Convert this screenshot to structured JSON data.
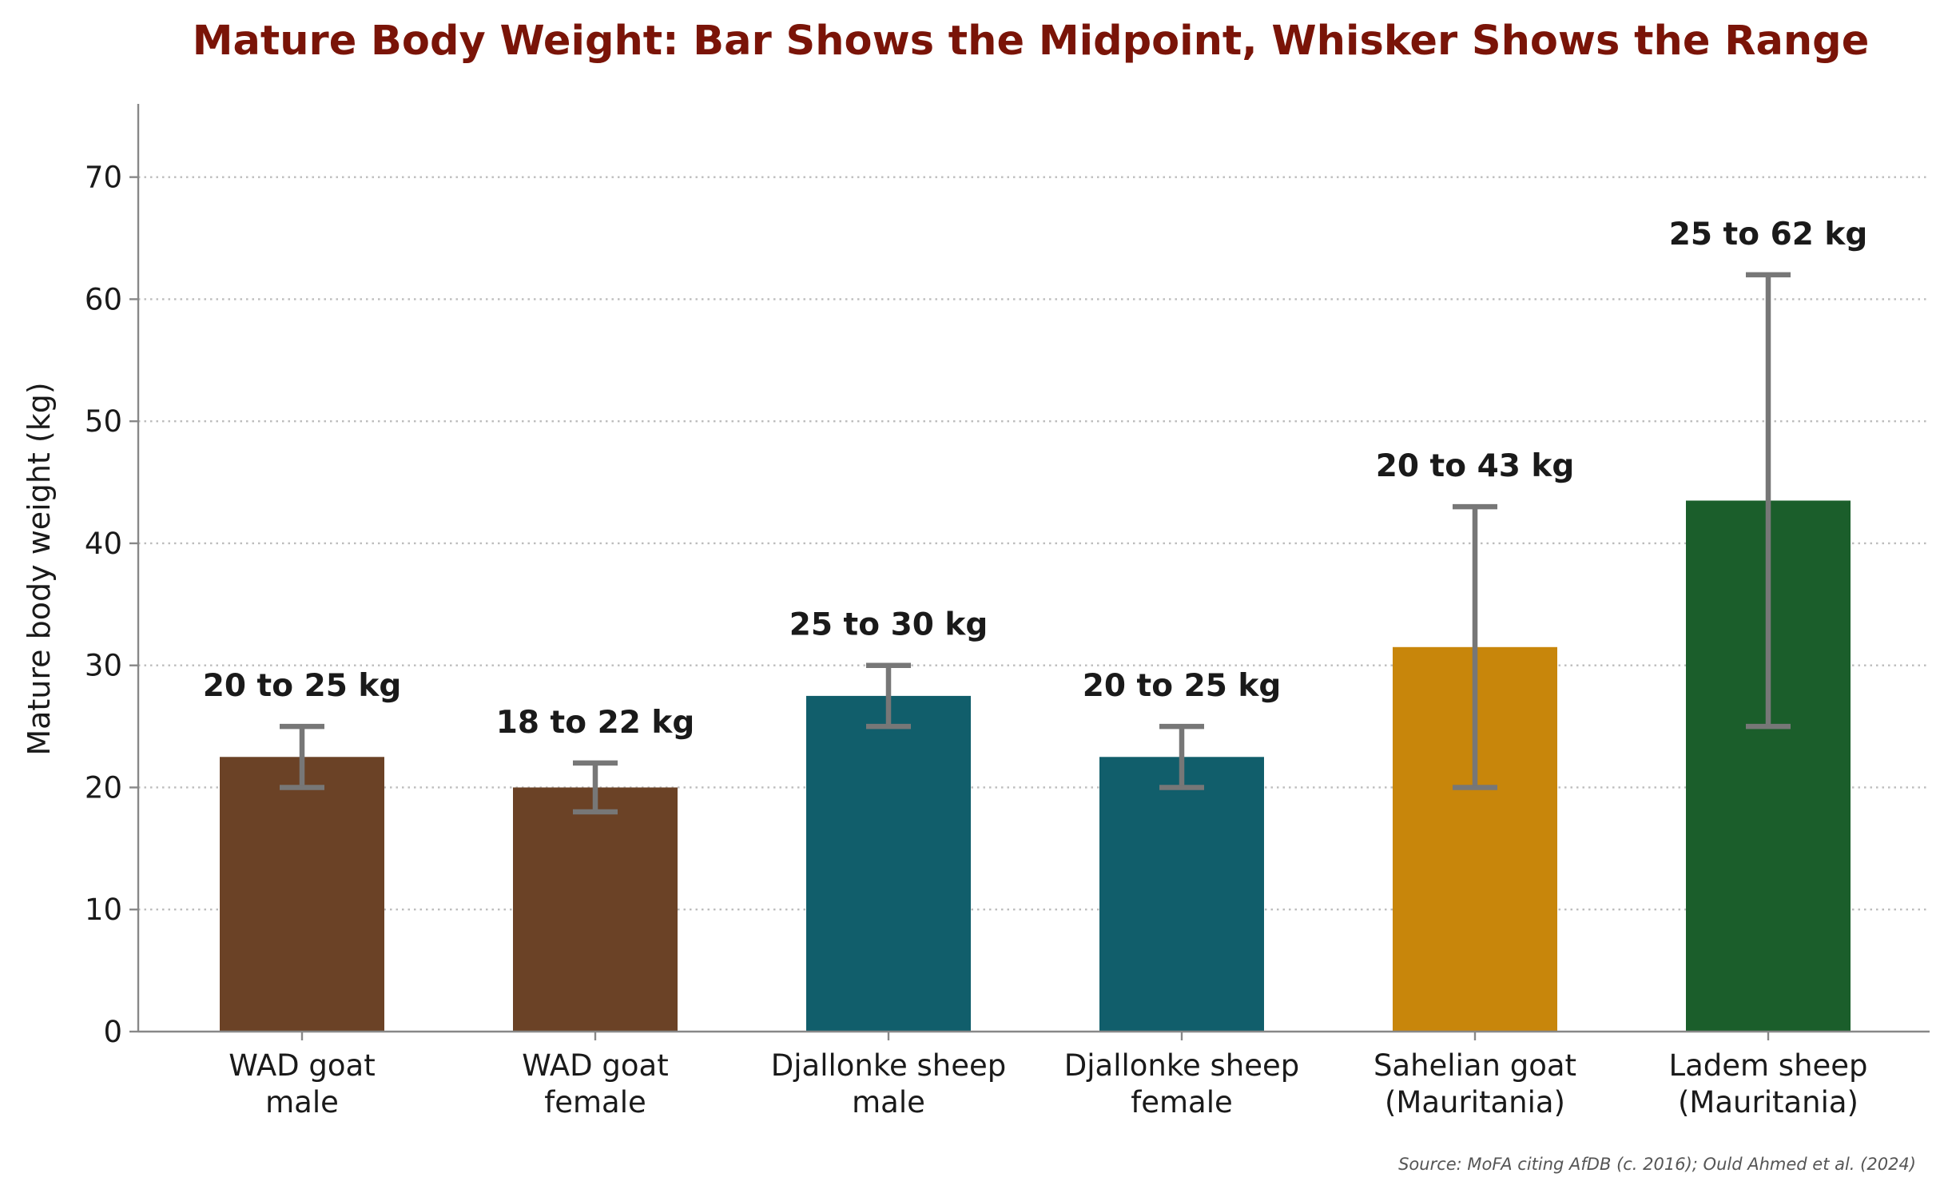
{
  "chart_data": {
    "type": "bar",
    "title": "Mature Body Weight: Bar Shows the Midpoint, Whisker Shows the Range",
    "ylabel": "Mature body weight (kg)",
    "xlabel": "",
    "ylim": [
      0,
      76
    ],
    "yticks": [
      "0",
      "10",
      "20",
      "30",
      "40",
      "50",
      "60",
      "70"
    ],
    "grid": "horizontal dotted",
    "categories": [
      [
        "WAD goat",
        "male"
      ],
      [
        "WAD goat",
        "female"
      ],
      [
        "Djallonke sheep",
        "male"
      ],
      [
        "Djallonke sheep",
        "female"
      ],
      [
        "Sahelian goat",
        "(Mauritania)"
      ],
      [
        "Ladem sheep",
        "(Mauritania)"
      ]
    ],
    "values": [
      22.5,
      20,
      27.5,
      22.5,
      31.5,
      43.5
    ],
    "range_low": [
      20,
      18,
      25,
      20,
      20,
      25
    ],
    "range_high": [
      25,
      22,
      30,
      25,
      43,
      62
    ],
    "bar_labels": [
      "20 to 25 kg",
      "18 to 22 kg",
      "25 to 30 kg",
      "20 to 25 kg",
      "20 to 43 kg",
      "25 to 62 kg"
    ],
    "colors": [
      "#6b4226",
      "#6b4226",
      "#115e6b",
      "#115e6b",
      "#c8860b",
      "#1b5e2b"
    ],
    "whisker_color": "#777777",
    "title_color": "#7a1408",
    "source": "Source: MoFA citing AfDB (c. 2016); Ould Ahmed et al. (2024)"
  }
}
